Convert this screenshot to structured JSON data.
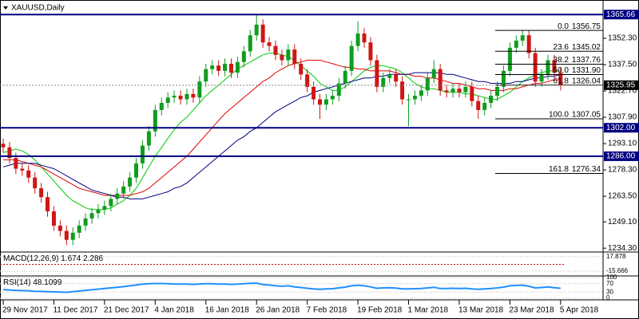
{
  "chart_data": {
    "type": "candlestick",
    "title": "XAUUSD,Daily",
    "categories": [
      "29 Nov 2017",
      null,
      null,
      null,
      null,
      null,
      null,
      null,
      "11 Dec 2017",
      null,
      null,
      null,
      null,
      null,
      null,
      null,
      "21 Dec 2017",
      null,
      null,
      null,
      null,
      null,
      null,
      null,
      "4 Jan 2018",
      null,
      null,
      null,
      null,
      null,
      null,
      null,
      "16 Jan 2018",
      null,
      null,
      null,
      null,
      null,
      null,
      null,
      "26 Jan 2018",
      null,
      null,
      null,
      null,
      null,
      null,
      null,
      "7 Feb 2018",
      null,
      null,
      null,
      null,
      null,
      null,
      null,
      "19 Feb 2018",
      null,
      null,
      null,
      null,
      null,
      null,
      null,
      "1 Mar 2018",
      null,
      null,
      null,
      null,
      null,
      null,
      null,
      "13 Mar 2018",
      null,
      null,
      null,
      null,
      null,
      null,
      null,
      "23 Mar 2018",
      null,
      null,
      null,
      null,
      null,
      null,
      null,
      "5 Apr 2018"
    ],
    "open": [
      1293,
      1291,
      1285,
      1279,
      1278,
      1274,
      1268,
      1263,
      1255,
      1247,
      1244,
      1239,
      1243,
      1247,
      1251,
      1254,
      1256,
      1258,
      1262,
      1265,
      1269,
      1274,
      1282,
      1292,
      1300,
      1312,
      1316,
      1319,
      1320,
      1318,
      1321,
      1319,
      1328,
      1335,
      1337,
      1334,
      1338,
      1333,
      1339,
      1345,
      1354,
      1360,
      1350,
      1348,
      1343,
      1340,
      1346,
      1338,
      1332,
      1325,
      1318,
      1315,
      1318,
      1320,
      1327,
      1334,
      1348,
      1355,
      1350,
      1340,
      1325,
      1330,
      1332,
      1328,
      1318,
      1318,
      1320,
      1323,
      1330,
      1335,
      1323,
      1322,
      1324,
      1322,
      1325,
      1317,
      1312,
      1316,
      1320,
      1325,
      1334,
      1347,
      1351,
      1354,
      1344,
      1328,
      1332,
      1340,
      1333
    ],
    "high": [
      1296,
      1294,
      1288,
      1282,
      1281,
      1277,
      1271,
      1266,
      1258,
      1250,
      1247,
      1246,
      1250,
      1254,
      1257,
      1259,
      1261,
      1265,
      1268,
      1272,
      1277,
      1285,
      1295,
      1303,
      1315,
      1319,
      1322,
      1323,
      1323,
      1324,
      1324,
      1331,
      1338,
      1340,
      1340,
      1341,
      1341,
      1342,
      1348,
      1357,
      1366,
      1363,
      1353,
      1351,
      1346,
      1349,
      1349,
      1341,
      1335,
      1328,
      1321,
      1321,
      1323,
      1330,
      1337,
      1351,
      1362,
      1358,
      1353,
      1343,
      1333,
      1335,
      1335,
      1331,
      1321,
      1323,
      1326,
      1333,
      1340,
      1338,
      1326,
      1327,
      1327,
      1328,
      1328,
      1320,
      1319,
      1323,
      1328,
      1337,
      1350,
      1354,
      1357,
      1357,
      1347,
      1335,
      1343,
      1343,
      1336
    ],
    "low": [
      1288,
      1282,
      1276,
      1275,
      1271,
      1265,
      1260,
      1252,
      1244,
      1241,
      1236,
      1236,
      1240,
      1244,
      1248,
      1251,
      1253,
      1255,
      1259,
      1262,
      1266,
      1271,
      1279,
      1289,
      1297,
      1309,
      1313,
      1316,
      1315,
      1315,
      1316,
      1316,
      1325,
      1332,
      1331,
      1331,
      1330,
      1330,
      1336,
      1342,
      1351,
      1347,
      1345,
      1340,
      1337,
      1337,
      1335,
      1329,
      1322,
      1315,
      1307,
      1312,
      1315,
      1317,
      1324,
      1331,
      1345,
      1347,
      1337,
      1322,
      1322,
      1327,
      1325,
      1315,
      1303,
      1315,
      1317,
      1320,
      1327,
      1320,
      1319,
      1319,
      1319,
      1319,
      1314,
      1307,
      1309,
      1313,
      1317,
      1322,
      1331,
      1344,
      1348,
      1341,
      1325,
      1325,
      1329,
      1330,
      1323
    ],
    "close": [
      1291,
      1285,
      1279,
      1278,
      1274,
      1268,
      1263,
      1255,
      1247,
      1244,
      1239,
      1243,
      1247,
      1251,
      1254,
      1256,
      1258,
      1262,
      1265,
      1269,
      1274,
      1282,
      1292,
      1300,
      1312,
      1316,
      1319,
      1320,
      1318,
      1321,
      1319,
      1328,
      1335,
      1337,
      1334,
      1338,
      1333,
      1339,
      1345,
      1354,
      1360,
      1350,
      1348,
      1343,
      1340,
      1346,
      1338,
      1332,
      1325,
      1318,
      1315,
      1318,
      1320,
      1327,
      1334,
      1348,
      1355,
      1350,
      1340,
      1325,
      1330,
      1332,
      1328,
      1318,
      1318,
      1320,
      1323,
      1330,
      1335,
      1323,
      1322,
      1324,
      1322,
      1325,
      1317,
      1312,
      1316,
      1320,
      1325,
      1334,
      1347,
      1351,
      1354,
      1344,
      1328,
      1332,
      1340,
      1333,
      1326
    ],
    "up_color": "#0f9d1f",
    "down_color": "#d01515",
    "ylim": [
      1232.6,
      1372.5
    ],
    "yticks": [
      {
        "value": 1352.3,
        "label": "1352.30"
      },
      {
        "value": 1337.5,
        "label": "1337.50"
      },
      {
        "value": 1322.7,
        "label": "1322.70"
      },
      {
        "value": 1307.9,
        "label": "1307.90"
      },
      {
        "value": 1293.1,
        "label": "1293.10"
      },
      {
        "value": 1278.3,
        "label": "1278.30"
      },
      {
        "value": 1263.5,
        "label": "1263.50"
      },
      {
        "value": 1249.1,
        "label": "1249.10"
      },
      {
        "value": 1234.3,
        "label": "1234.30"
      }
    ],
    "levels": [
      1365.66,
      {
        "value": 1302,
        "label": "1302.00"
      },
      {
        "value": 1286,
        "label": "1286.00"
      }
    ],
    "level_color": "#000080",
    "current_price": 1325.95,
    "fibonacci": [
      {
        "ratio": "0.0",
        "value": 1356.75
      },
      {
        "ratio": "23.6",
        "value": 1345.02
      },
      {
        "ratio": "38.2",
        "value": 1337.76
      },
      {
        "ratio": "50.0",
        "value": 1331.9,
        "label": "1331.90"
      },
      {
        "ratio": "61.8",
        "value": 1326.04
      },
      {
        "ratio": "100.0",
        "value": 1307.05
      },
      {
        "ratio": "161.8",
        "value": 1276.34
      }
    ],
    "series": [
      {
        "color": "#00c800",
        "values": [
          1288,
          1289,
          1290,
          1289,
          1287,
          1284,
          1280,
          1276,
          1272,
          1268,
          1264,
          1261,
          1259,
          1257,
          1256,
          1256,
          1256,
          1257,
          1259,
          1261,
          1264,
          1268,
          1274,
          1280,
          1286,
          1291,
          1296,
          1301,
          1305,
          1308,
          1312,
          1316,
          1320,
          1323,
          1326,
          1329,
          1332,
          1335,
          1337,
          1339,
          1341,
          1343,
          1344,
          1344,
          1343,
          1342,
          1340,
          1337,
          1334,
          1331,
          1327,
          1325,
          1323,
          1323,
          1325,
          1328,
          1331,
          1334,
          1336,
          1337,
          1337,
          1336,
          1335,
          1333,
          1330,
          1327,
          1325,
          1324,
          1324,
          1323,
          1322,
          1322,
          1322,
          1321,
          1321,
          1320,
          1319,
          1318,
          1318,
          1320,
          1322,
          1325,
          1328,
          1330,
          1332,
          1333,
          1334,
          1334,
          1334
        ]
      },
      {
        "color": "#e00000",
        "values": [
          1284,
          1284,
          1284,
          1283,
          1282,
          1281,
          1280,
          1278,
          1276,
          1274,
          1272,
          1270,
          1268,
          1267,
          1266,
          1265,
          1264,
          1264,
          1264,
          1264,
          1264,
          1265,
          1266,
          1268,
          1271,
          1274,
          1277,
          1280,
          1283,
          1286,
          1290,
          1294,
          1298,
          1302,
          1306,
          1310,
          1313,
          1316,
          1319,
          1322,
          1325,
          1328,
          1330,
          1333,
          1335,
          1337,
          1338,
          1339,
          1340,
          1340,
          1340,
          1339,
          1338,
          1337,
          1336,
          1336,
          1335,
          1335,
          1334,
          1334,
          1334,
          1334,
          1333,
          1332,
          1332,
          1331,
          1331,
          1330,
          1330,
          1329,
          1328,
          1327,
          1327,
          1326,
          1325,
          1324,
          1324,
          1323,
          1323,
          1323,
          1324,
          1324,
          1325,
          1326,
          1327,
          1327,
          1328,
          1329,
          1329
        ]
      },
      {
        "color": "#000080",
        "values": [
          1280,
          1281,
          1282,
          1282,
          1282,
          1282,
          1281,
          1280,
          1279,
          1277,
          1275,
          1273,
          1271,
          1269,
          1267,
          1266,
          1265,
          1264,
          1263,
          1263,
          1262,
          1262,
          1262,
          1263,
          1264,
          1265,
          1266,
          1268,
          1269,
          1271,
          1274,
          1277,
          1280,
          1283,
          1286,
          1289,
          1292,
          1295,
          1297,
          1300,
          1302,
          1305,
          1308,
          1311,
          1313,
          1315,
          1317,
          1319,
          1320,
          1322,
          1323,
          1324,
          1325,
          1326,
          1327,
          1328,
          1329,
          1330,
          1330,
          1331,
          1331,
          1332,
          1332,
          1332,
          1332,
          1333,
          1333,
          1333,
          1333,
          1333,
          1332,
          1332,
          1331,
          1330,
          1329,
          1328,
          1328,
          1327,
          1327,
          1327,
          1327,
          1328,
          1328,
          1329,
          1330,
          1330,
          1331,
          1331,
          1332
        ]
      }
    ],
    "indicators": [
      {
        "type": "macd",
        "name": "MACD(12,26,9)",
        "macd": 1.674,
        "signal": 2.286,
        "ylim": [
          -25,
          25
        ],
        "yticks": [
          17.878,
          -15.666
        ]
      },
      {
        "type": "line",
        "name": "RSI(14)",
        "last": 48.1099,
        "color": "#1e90ff",
        "ylim": [
          0,
          100
        ],
        "yticks": [
          100,
          70,
          30,
          0
        ],
        "values": [
          42,
          40,
          38,
          37,
          36,
          34,
          33,
          32,
          31,
          30,
          29,
          32,
          35,
          38,
          41,
          44,
          47,
          50,
          53,
          56,
          60,
          64,
          68,
          70,
          71,
          71,
          70,
          69,
          68,
          68,
          67,
          69,
          70,
          70,
          68,
          69,
          67,
          68,
          70,
          72,
          73,
          66,
          64,
          60,
          58,
          60,
          55,
          52,
          48,
          45,
          43,
          45,
          46,
          50,
          54,
          60,
          63,
          60,
          55,
          48,
          50,
          51,
          49,
          45,
          45,
          46,
          47,
          50,
          53,
          47,
          47,
          48,
          47,
          48,
          45,
          43,
          45,
          47,
          50,
          54,
          60,
          62,
          63,
          58,
          50,
          52,
          55,
          51,
          48
        ]
      }
    ]
  }
}
